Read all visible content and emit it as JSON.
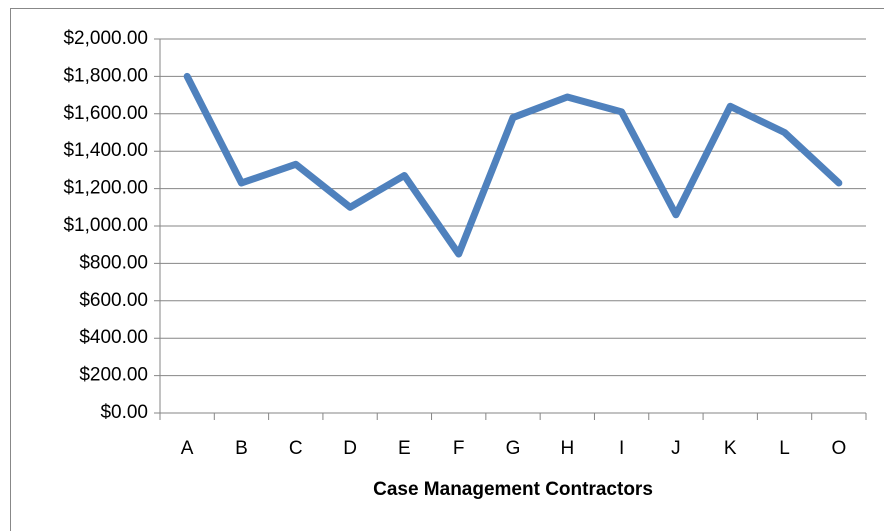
{
  "chart_data": {
    "type": "line",
    "x_label": "Case Management Contractors",
    "categories": [
      "A",
      "B",
      "C",
      "D",
      "E",
      "F",
      "G",
      "H",
      "I",
      "J",
      "K",
      "L",
      "O"
    ],
    "series": [
      {
        "color": "#4f81bd",
        "values": [
          1800,
          1230,
          1330,
          1100,
          1270,
          850,
          1580,
          1690,
          1610,
          1060,
          1640,
          1500,
          1230
        ]
      }
    ],
    "ylim": [
      0,
      2000
    ],
    "yticks": [
      {
        "value": 0,
        "label": "$0.00"
      },
      {
        "value": 200,
        "label": "$200.00"
      },
      {
        "value": 400,
        "label": "$400.00"
      },
      {
        "value": 600,
        "label": "$600.00"
      },
      {
        "value": 800,
        "label": "$800.00"
      },
      {
        "value": 1000,
        "label": "$1,000.00"
      },
      {
        "value": 1200,
        "label": "$1,200.00"
      },
      {
        "value": 1400,
        "label": "$1,400.00"
      },
      {
        "value": 1600,
        "label": "$1,600.00"
      },
      {
        "value": 1800,
        "label": "$1,800.00"
      },
      {
        "value": 2000,
        "label": "$2,000.00"
      }
    ],
    "grid": true
  }
}
